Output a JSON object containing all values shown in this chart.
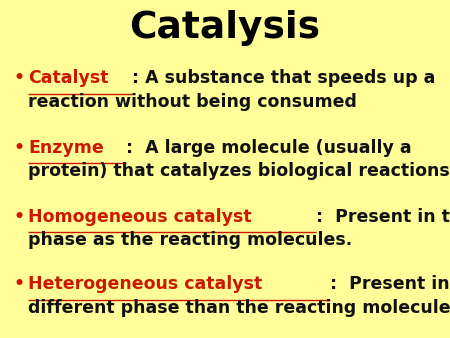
{
  "title": "Catalysis",
  "background_color": "#FFFE99",
  "title_fontsize": 27,
  "body_fontsize": 12.5,
  "keyword_color": "#CC1800",
  "body_color": "#111111",
  "bullet": "•",
  "items": [
    {
      "keyword": "Catalyst",
      "line1_rest": ": A substance that speeds up a",
      "line2": "reaction without being consumed"
    },
    {
      "keyword": "Enzyme",
      "line1_rest": ":  A large molecule (usually a",
      "line2": "protein) that catalyzes biological reactions."
    },
    {
      "keyword": "Homogeneous catalyst",
      "line1_rest": ":  Present in the same",
      "line2": "phase as the reacting molecules."
    },
    {
      "keyword": "Heterogeneous catalyst",
      "line1_rest": ":  Present in a",
      "line2": "different phase than the reacting molecules."
    }
  ]
}
